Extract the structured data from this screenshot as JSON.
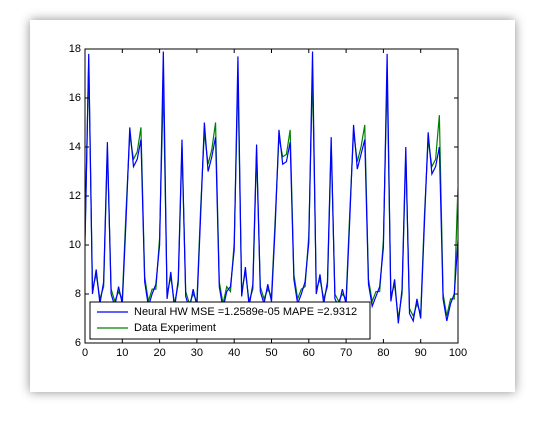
{
  "chart_data": {
    "type": "line",
    "x": [
      0,
      1,
      2,
      3,
      4,
      5,
      6,
      7,
      8,
      9,
      10,
      11,
      12,
      13,
      14,
      15,
      16,
      17,
      18,
      19,
      20,
      21,
      22,
      23,
      24,
      25,
      26,
      27,
      28,
      29,
      30,
      31,
      32,
      33,
      34,
      35,
      36,
      37,
      38,
      39,
      40,
      41,
      42,
      43,
      44,
      45,
      46,
      47,
      48,
      49,
      50,
      51,
      52,
      53,
      54,
      55,
      56,
      57,
      58,
      59,
      60,
      61,
      62,
      63,
      64,
      65,
      66,
      67,
      68,
      69,
      70,
      71,
      72,
      73,
      74,
      75,
      76,
      77,
      78,
      79,
      80,
      81,
      82,
      83,
      84,
      85,
      86,
      87,
      88,
      89,
      90,
      91,
      92,
      93,
      94,
      95,
      96,
      97,
      98,
      99,
      100
    ],
    "series": [
      {
        "name": "Neural HW MSE =1.2589e-05 MAPE =2.9312",
        "color": "#0000ff",
        "values": [
          10.0,
          17.8,
          8.0,
          9.0,
          7.6,
          8.5,
          14.2,
          8.0,
          7.5,
          8.3,
          7.6,
          11.0,
          14.8,
          13.2,
          13.5,
          14.3,
          8.5,
          7.5,
          8.0,
          8.4,
          10.0,
          17.9,
          7.8,
          8.9,
          7.4,
          8.6,
          14.3,
          7.9,
          7.4,
          8.2,
          7.5,
          11.2,
          15.0,
          13.0,
          13.6,
          14.4,
          8.3,
          7.4,
          8.1,
          8.3,
          9.8,
          17.7,
          7.9,
          9.1,
          7.5,
          8.4,
          14.1,
          8.1,
          7.6,
          8.4,
          7.7,
          10.8,
          14.7,
          13.3,
          13.4,
          14.2,
          8.6,
          7.6,
          8.0,
          8.5,
          10.1,
          17.9,
          8.0,
          8.8,
          7.6,
          8.5,
          14.4,
          7.8,
          7.5,
          8.2,
          7.6,
          11.1,
          14.9,
          13.1,
          13.7,
          14.3,
          8.4,
          7.5,
          7.9,
          8.3,
          9.9,
          17.8,
          7.7,
          8.6,
          6.8,
          8.2,
          14.0,
          7.2,
          6.9,
          7.8,
          7.0,
          10.9,
          14.6,
          12.9,
          13.2,
          14.0,
          7.8,
          6.9,
          7.6,
          8.0,
          10.2
        ]
      },
      {
        "name": "Data Experiment",
        "color": "#008000",
        "values": [
          10.3,
          17.5,
          8.2,
          8.8,
          7.8,
          8.3,
          13.9,
          8.2,
          7.7,
          8.1,
          7.8,
          11.4,
          14.5,
          13.5,
          13.8,
          14.8,
          8.7,
          7.7,
          8.2,
          8.2,
          10.3,
          16.5,
          8.0,
          8.7,
          7.6,
          8.4,
          14.0,
          8.1,
          7.6,
          8.0,
          7.7,
          11.5,
          14.6,
          13.3,
          13.9,
          15.0,
          8.5,
          7.6,
          8.3,
          8.1,
          10.1,
          16.8,
          8.1,
          8.9,
          7.7,
          8.2,
          13.8,
          8.3,
          7.8,
          8.2,
          7.9,
          11.1,
          14.4,
          13.6,
          13.7,
          14.7,
          8.8,
          7.8,
          8.2,
          8.3,
          10.4,
          17.0,
          8.2,
          8.6,
          7.8,
          8.3,
          14.1,
          8.0,
          7.7,
          8.0,
          7.8,
          11.4,
          14.6,
          13.4,
          14.0,
          14.9,
          8.6,
          7.7,
          8.1,
          8.1,
          10.2,
          16.9,
          7.9,
          8.4,
          7.0,
          8.0,
          13.7,
          7.4,
          7.1,
          7.6,
          7.2,
          11.2,
          14.3,
          13.2,
          13.5,
          15.3,
          8.0,
          7.1,
          7.8,
          7.8,
          12.5
        ]
      }
    ],
    "xlim": [
      0,
      100
    ],
    "xticks": [
      0,
      10,
      20,
      30,
      40,
      50,
      60,
      70,
      80,
      90,
      100
    ],
    "ylim": [
      6,
      18
    ],
    "yticks": [
      6,
      8,
      10,
      12,
      14,
      16,
      18
    ],
    "legend": "lower left"
  }
}
